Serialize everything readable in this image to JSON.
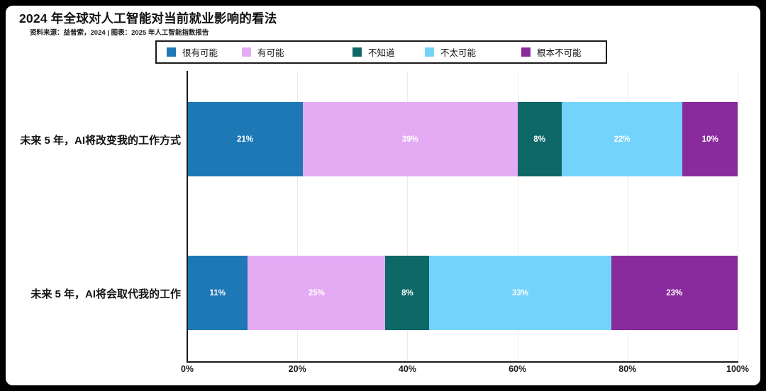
{
  "page": {
    "title": "2024 年全球对人工智能对当前就业影响的看法",
    "source_note": "资料来源：益普索，2024 | 图表：2025 年人工智能指数报告"
  },
  "colors": {
    "very_likely_blue": "#1e78b5",
    "somewhat_likely_plum": "#e4aaf4",
    "dont_know_teal": "#0e6868",
    "not_likely_sky": "#74d3fa",
    "not_at_all_purple": "#8a2b9d",
    "axis": "#1a1a1a",
    "gridline": "#ececec",
    "bar_value_text": "#ffffff"
  },
  "chart_data": {
    "type": "bar",
    "orientation": "horizontal",
    "stacked": true,
    "title": "2024 年全球对人工智能对当前就业影响的看法",
    "source_note": "资料来源：益普索，2024 | 图表：2025 年人工智能指数报告",
    "categories": [
      "未来 5 年，AI将改变我的工作方式",
      "未来 5 年，AI将会取代我的工作"
    ],
    "series": [
      {
        "name": "很有可能",
        "color": "#1e78b5",
        "values": [
          21,
          11
        ]
      },
      {
        "name": "有可能",
        "color": "#e4aaf4",
        "values": [
          39,
          25
        ]
      },
      {
        "name": "不知道",
        "color": "#0e6868",
        "values": [
          8,
          8
        ]
      },
      {
        "name": "不太可能",
        "color": "#74d3fa",
        "values": [
          22,
          33
        ]
      },
      {
        "name": "根本不可能",
        "color": "#8a2b9d",
        "values": [
          10,
          23
        ]
      }
    ],
    "value_label_format": "{v}%",
    "x_ticks": [
      "0%",
      "20%",
      "40%",
      "60%",
      "80%",
      "100%"
    ],
    "xlim": [
      0,
      100
    ],
    "legend_position": "top",
    "grid": "vertical"
  }
}
